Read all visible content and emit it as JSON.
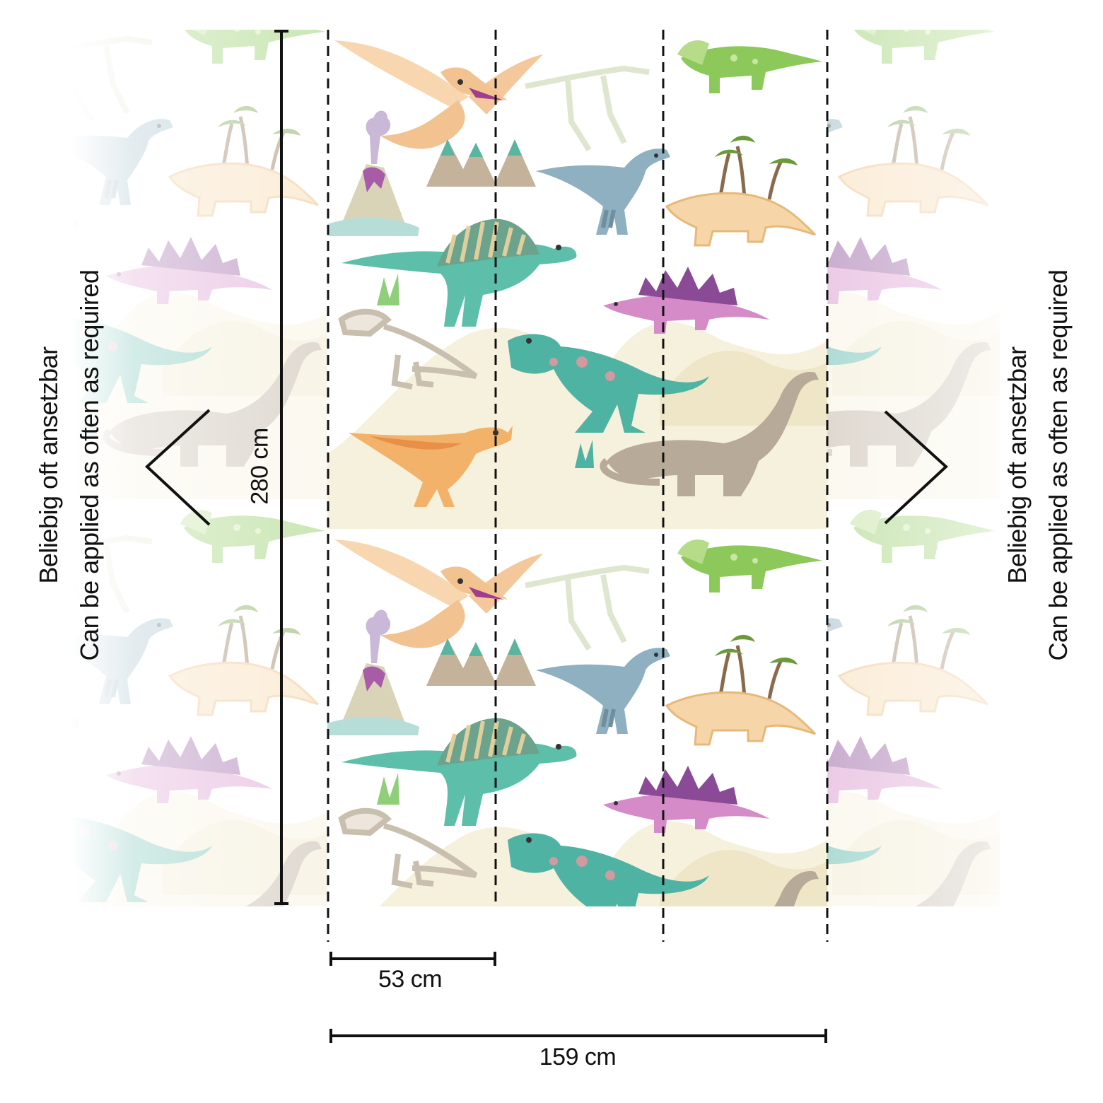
{
  "note": {
    "line_de": "Beliebig oft ansetzbar",
    "line_en": "Can be applied as often as required"
  },
  "dimensions": {
    "height_label": "280 cm",
    "panel_width_label": "53 cm",
    "total_width_label": "159 cm"
  },
  "panels": {
    "count": 3,
    "active_count": 3
  },
  "motif_colors": {
    "teal": "#4fb3a3",
    "green": "#8cc85a",
    "peach": "#f2c290",
    "orange": "#e8a45a",
    "purple": "#b067b5",
    "blue_grey": "#8fb0c0",
    "sand": "#efe6c8",
    "bone": "#c9bfae",
    "taupe": "#b8aa98"
  },
  "icons": {
    "left_arrow": "chevron-left-icon",
    "right_arrow": "chevron-right-icon"
  }
}
